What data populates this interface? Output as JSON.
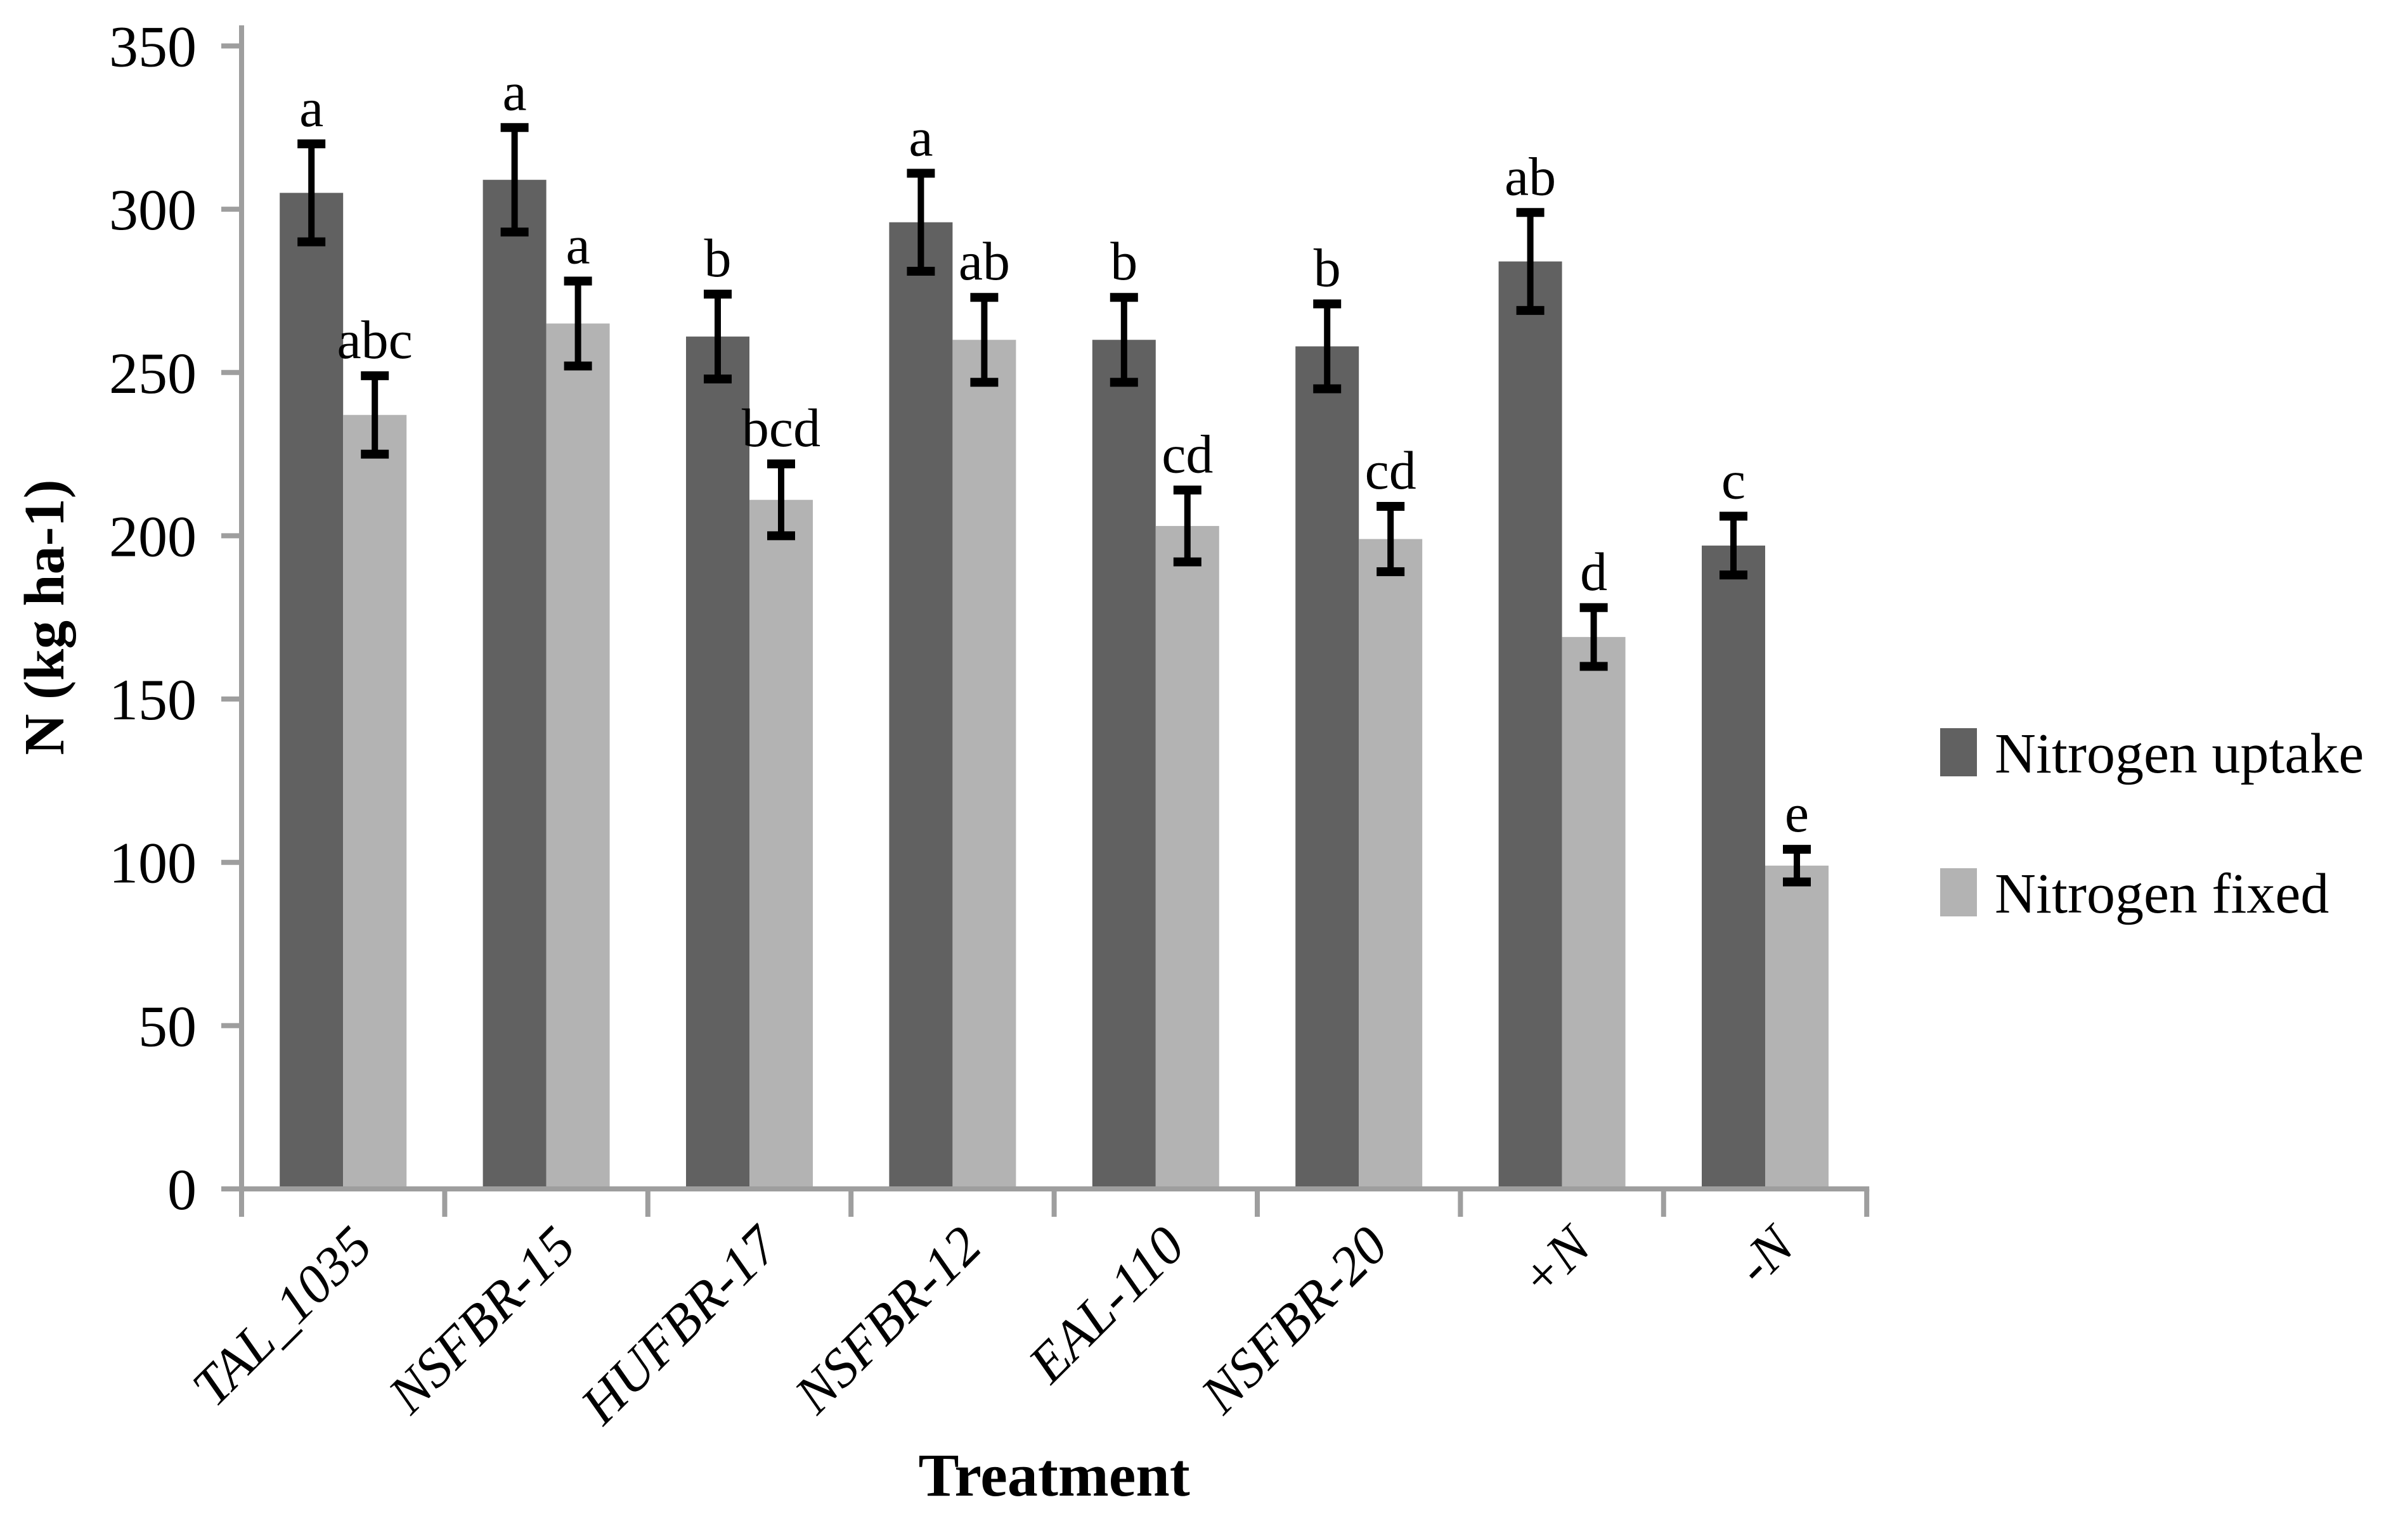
{
  "chart_data": {
    "type": "bar",
    "title": "",
    "xlabel": "Treatment",
    "ylabel": "N (kg ha-1)",
    "categories": [
      "TAL_1035",
      "NSFBR-15",
      "HUFBR-17",
      "NSFBR-12",
      "EAL-110",
      "NSFBR-20",
      "+N",
      "-N"
    ],
    "series": [
      {
        "name": "Nitrogen uptake",
        "color": "#616161",
        "values": [
          305,
          309,
          261,
          296,
          260,
          258,
          284,
          197
        ],
        "errors": [
          15,
          16,
          13,
          15,
          13,
          13,
          15,
          9
        ],
        "sig_letters": [
          "a",
          "a",
          "b",
          "a",
          "b",
          "b",
          "ab",
          "c"
        ]
      },
      {
        "name": "Nitrogen fixed",
        "color": "#b3b3b3",
        "values": [
          237,
          265,
          211,
          260,
          203,
          199,
          169,
          99
        ],
        "errors": [
          12,
          13,
          11,
          13,
          11,
          10,
          9,
          5
        ],
        "sig_letters": [
          "abc",
          "a",
          "bcd",
          "ab",
          "cd",
          "cd",
          "d",
          "e"
        ]
      }
    ],
    "ylim": [
      0,
      350
    ],
    "yticks": [
      0,
      50,
      100,
      150,
      200,
      250,
      300,
      350
    ],
    "grid": false,
    "legend_position": "right",
    "error_bar_color": "#000000",
    "axis_color": "#9e9e9e",
    "text_color": "#000000"
  }
}
